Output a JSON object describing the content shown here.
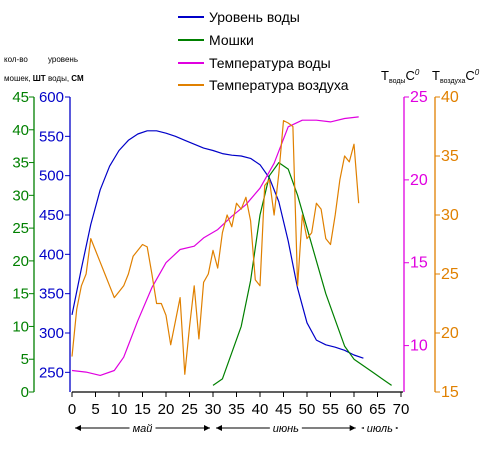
{
  "chart_data": {
    "type": "line",
    "x_axis": {
      "ticks": [
        0,
        5,
        10,
        15,
        20,
        25,
        30,
        35,
        40,
        45,
        50,
        55,
        60,
        65,
        70
      ],
      "range": [
        0,
        70
      ],
      "month_labels": [
        {
          "text": "май",
          "from": 0,
          "to": 30
        },
        {
          "text": "июнь",
          "from": 30,
          "to": 61
        },
        {
          "text": "июль",
          "from": 61,
          "to": 70
        }
      ]
    },
    "left_axes": [
      {
        "id": "midges",
        "header_line1": "кол-во",
        "header_line2": "мошек,",
        "unit": "ШТ",
        "range": [
          0,
          45
        ],
        "ticks": [
          0,
          5,
          10,
          15,
          20,
          25,
          30,
          35,
          40,
          45
        ],
        "color": "#008000"
      },
      {
        "id": "level",
        "header_line1": "уровень",
        "header_line2": "воды,",
        "unit": "СМ",
        "range": [
          225,
          600
        ],
        "ticks": [
          250,
          300,
          350,
          400,
          450,
          500,
          550,
          600
        ],
        "color": "#0000c8"
      }
    ],
    "right_axes": [
      {
        "id": "water_temp",
        "label_main": "T",
        "label_sub": "воды",
        "label_unit": "C",
        "label_sup": "0",
        "range": [
          7.2,
          25
        ],
        "ticks": [
          10,
          15,
          20,
          25
        ],
        "color": "#e000e0"
      },
      {
        "id": "air_temp",
        "label_main": "T",
        "label_sub": "воздуха",
        "label_unit": "C",
        "label_sup": "0",
        "range": [
          15,
          40
        ],
        "ticks": [
          15,
          20,
          25,
          30,
          35,
          40
        ],
        "color": "#e08000"
      }
    ],
    "series": [
      {
        "name": "Уровень воды",
        "axis": "level",
        "color": "#0000c8",
        "x": [
          0,
          2,
          4,
          6,
          8,
          10,
          12,
          14,
          16,
          18,
          20,
          22,
          24,
          26,
          28,
          30,
          32,
          34,
          36,
          38,
          40,
          42,
          44,
          46,
          48,
          50,
          52,
          54,
          56,
          58,
          60,
          62
        ],
        "y": [
          323,
          382,
          438,
          482,
          512,
          532,
          545,
          553,
          557,
          557,
          554,
          550,
          545,
          540,
          535,
          532,
          528,
          526,
          525,
          522,
          514,
          497,
          467,
          417,
          357,
          313,
          291,
          285,
          282,
          278,
          272,
          268
        ]
      },
      {
        "name": "Мошки",
        "axis": "midges",
        "color": "#008000",
        "x": [
          30,
          32,
          34,
          36,
          38,
          40,
          42,
          44,
          46,
          48,
          50,
          52,
          54,
          56,
          58,
          60,
          62,
          64,
          66,
          68
        ],
        "y": [
          1,
          2,
          6,
          10,
          17,
          27,
          33,
          35,
          34,
          30,
          25,
          20,
          15,
          11,
          7,
          5,
          4,
          3,
          2,
          1
        ]
      },
      {
        "name": "Температура воды",
        "axis": "water_temp",
        "color": "#e000e0",
        "x": [
          0,
          3,
          6,
          9,
          11,
          14,
          17,
          20,
          23,
          26,
          28,
          31,
          34,
          37,
          40,
          43,
          46,
          49,
          52,
          55,
          58,
          61
        ],
        "y": [
          8.5,
          8.4,
          8.2,
          8.5,
          9.3,
          11.5,
          13.5,
          15.0,
          15.8,
          16.0,
          16.5,
          17.0,
          17.8,
          18.5,
          19.5,
          21.0,
          23.2,
          23.6,
          23.6,
          23.5,
          23.7,
          23.8
        ]
      },
      {
        "name": "Температура воздуха",
        "axis": "air_temp",
        "color": "#e08000",
        "x": [
          0,
          1,
          2,
          3,
          4,
          5,
          6,
          7,
          8,
          9,
          10,
          11,
          12,
          13,
          14,
          15,
          16,
          17,
          18,
          19,
          20,
          21,
          22,
          23,
          24,
          25,
          26,
          27,
          28,
          29,
          30,
          31,
          32,
          33,
          34,
          35,
          36,
          37,
          38,
          39,
          40,
          41,
          42,
          43,
          44,
          45,
          46,
          47,
          48,
          49,
          50,
          51,
          52,
          53,
          54,
          55,
          56,
          57,
          58,
          59,
          60,
          61
        ],
        "y": [
          18,
          22,
          24,
          25,
          28,
          27,
          26,
          25,
          24,
          23,
          23.5,
          24,
          25,
          26.5,
          27,
          27.5,
          27.3,
          25,
          22.5,
          22.5,
          21.5,
          19,
          21,
          23,
          16.5,
          20.5,
          24,
          19.5,
          24.3,
          25,
          27,
          25.5,
          28.5,
          30,
          29,
          31,
          30.5,
          31.5,
          29.5,
          24.5,
          24,
          32.5,
          33,
          30,
          33.5,
          38,
          37.8,
          37.5,
          24,
          30,
          28,
          28.5,
          31,
          30.5,
          28,
          27.5,
          30,
          33,
          35,
          34.5,
          36,
          31
        ]
      }
    ],
    "legend": {
      "position": "top",
      "entries": [
        "Уровень воды",
        "Мошки",
        "Температура воды",
        "Температура воздуха"
      ]
    }
  }
}
